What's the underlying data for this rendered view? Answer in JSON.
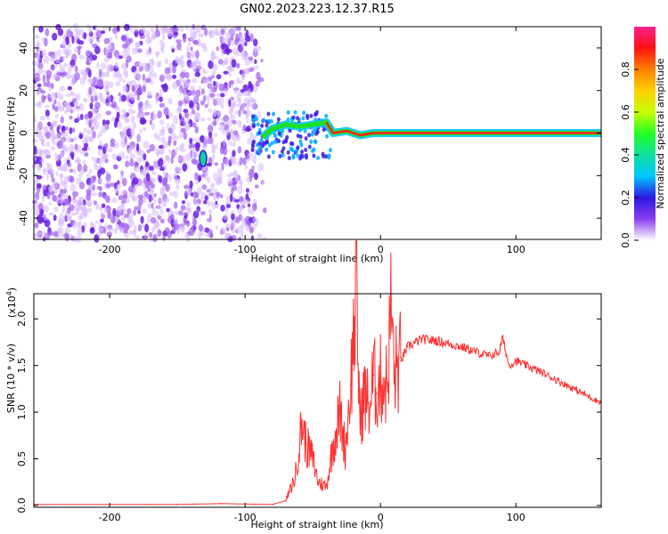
{
  "title": "GN02.2023.223.12.37.R15",
  "chart_data": [
    {
      "type": "heatmap",
      "xlabel": "Height of straight line (km)",
      "ylabel": "Frequency (Hz)",
      "xlim": [
        -256,
        163
      ],
      "ylim": [
        -50,
        50
      ],
      "xticks": [
        -200,
        -100,
        0,
        100
      ],
      "yticks": [
        -40,
        -20,
        0,
        20,
        40
      ],
      "colorbar": {
        "label": "Normalized spectral amplitude",
        "range": [
          0,
          1
        ],
        "ticks": [
          "0.0",
          "0.2",
          "0.4",
          "0.6",
          "0.8"
        ],
        "colors": [
          "#ffffff",
          "#8a3cf0",
          "#2b18e0",
          "#00c8ff",
          "#10e0a0",
          "#20ff20",
          "#c8ff00",
          "#ffd000",
          "#ff8000",
          "#ff1010",
          "#ff2090"
        ]
      },
      "ridge": [
        {
          "x": -87,
          "y": -2
        },
        {
          "x": -80,
          "y": 2
        },
        {
          "x": -70,
          "y": 4
        },
        {
          "x": -60,
          "y": 3
        },
        {
          "x": -50,
          "y": 4
        },
        {
          "x": -40,
          "y": 5
        },
        {
          "x": -35,
          "y": 0
        },
        {
          "x": -25,
          "y": 1
        },
        {
          "x": -15,
          "y": -1
        },
        {
          "x": -5,
          "y": 0
        },
        {
          "x": 0,
          "y": 0
        },
        {
          "x": 163,
          "y": 0
        }
      ],
      "blob": {
        "x": -131,
        "y": -12
      }
    },
    {
      "type": "line",
      "xlabel": "Height of straight line (km)",
      "ylabel": "SNR (10 * v/v)",
      "scale_note": "(x10",
      "scale_exp": "4",
      "scale_close": ")",
      "xlim": [
        -256,
        163
      ],
      "ylim": [
        -0.02,
        2.27
      ],
      "xticks": [
        -200,
        -100,
        0,
        100
      ],
      "yticks": [
        "0.0",
        "0.5",
        "1.0",
        "1.5",
        "2.0"
      ],
      "color": "#ff3030",
      "points": [
        {
          "x": -256,
          "y": 0.01
        },
        {
          "x": -150,
          "y": 0.01
        },
        {
          "x": -118,
          "y": 0.02
        },
        {
          "x": -80,
          "y": 0.01
        },
        {
          "x": -70,
          "y": 0.05
        },
        {
          "x": -63,
          "y": 0.3
        },
        {
          "x": -58,
          "y": 0.9
        },
        {
          "x": -55,
          "y": 0.65
        },
        {
          "x": -50,
          "y": 0.5
        },
        {
          "x": -46,
          "y": 0.25
        },
        {
          "x": -40,
          "y": 0.2
        },
        {
          "x": -35,
          "y": 0.65
        },
        {
          "x": -30,
          "y": 1.0
        },
        {
          "x": -26,
          "y": 0.6
        },
        {
          "x": -22,
          "y": 1.3
        },
        {
          "x": -18,
          "y": 2.27
        },
        {
          "x": -15,
          "y": 0.9
        },
        {
          "x": -12,
          "y": 1.2
        },
        {
          "x": -8,
          "y": 1.05
        },
        {
          "x": -5,
          "y": 1.4
        },
        {
          "x": -3,
          "y": 1.2
        },
        {
          "x": 0,
          "y": 1.35
        },
        {
          "x": 5,
          "y": 1.3
        },
        {
          "x": 8,
          "y": 2.2
        },
        {
          "x": 10,
          "y": 1.4
        },
        {
          "x": 15,
          "y": 1.55
        },
        {
          "x": 20,
          "y": 1.7
        },
        {
          "x": 30,
          "y": 1.78
        },
        {
          "x": 40,
          "y": 1.77
        },
        {
          "x": 60,
          "y": 1.7
        },
        {
          "x": 80,
          "y": 1.6
        },
        {
          "x": 88,
          "y": 1.65
        },
        {
          "x": 90,
          "y": 1.8
        },
        {
          "x": 95,
          "y": 1.5
        },
        {
          "x": 100,
          "y": 1.55
        },
        {
          "x": 120,
          "y": 1.42
        },
        {
          "x": 140,
          "y": 1.27
        },
        {
          "x": 163,
          "y": 1.1
        }
      ]
    }
  ]
}
